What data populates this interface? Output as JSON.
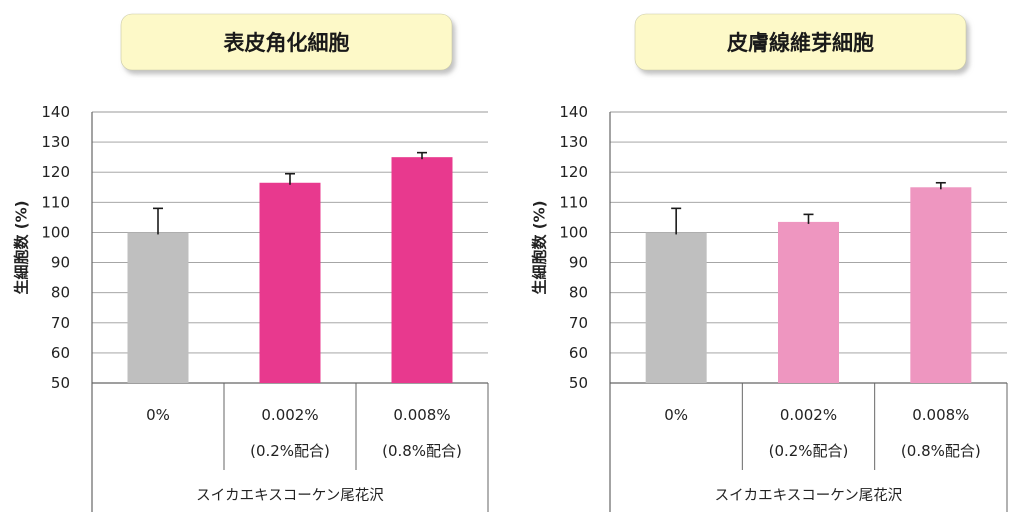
{
  "colors": {
    "control": "#bfbfbf",
    "accent_left": "#e8398e",
    "accent_right": "#ee96c0",
    "title_box": "#fdf9c8",
    "grid": "#9a9a9a",
    "axis": "#666666",
    "error_bar": "#1a1a1a"
  },
  "chart_data": [
    {
      "type": "bar",
      "title": "表皮角化細胞",
      "ylabel": "生細胞数 (%)",
      "ylim": [
        50,
        140
      ],
      "yticks": [
        50,
        60,
        70,
        80,
        90,
        100,
        110,
        120,
        130,
        140
      ],
      "grid": true,
      "categories": [
        {
          "line1": "0%",
          "line2": ""
        },
        {
          "line1": "0.002%",
          "line2": "(0.2%配合)"
        },
        {
          "line1": "0.008%",
          "line2": "(0.8%配合)"
        }
      ],
      "group_label": "スイカエキスコーケン尾花沢",
      "values": [
        100,
        116.5,
        125
      ],
      "errors": [
        8,
        3,
        1.5
      ],
      "bar_colors": [
        "control",
        "accent_left",
        "accent_left"
      ]
    },
    {
      "type": "bar",
      "title": "皮膚線維芽細胞",
      "ylabel": "生細胞数 (%)",
      "ylim": [
        50,
        140
      ],
      "yticks": [
        50,
        60,
        70,
        80,
        90,
        100,
        110,
        120,
        130,
        140
      ],
      "grid": true,
      "categories": [
        {
          "line1": "0%",
          "line2": ""
        },
        {
          "line1": "0.002%",
          "line2": "(0.2%配合)"
        },
        {
          "line1": "0.008%",
          "line2": "(0.8%配合)"
        }
      ],
      "group_label": "スイカエキスコーケン尾花沢",
      "values": [
        100,
        103.5,
        115
      ],
      "errors": [
        8,
        2.5,
        1.5
      ],
      "bar_colors": [
        "control",
        "accent_right",
        "accent_right"
      ]
    }
  ]
}
